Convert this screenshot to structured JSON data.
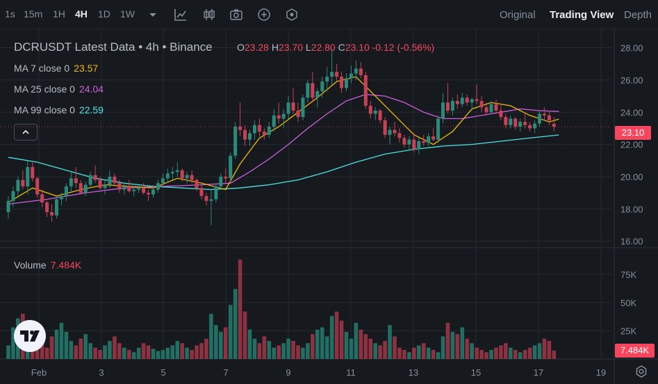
{
  "toolbar": {
    "intervals": [
      "1s",
      "15m",
      "1H",
      "4H",
      "1D",
      "1W"
    ],
    "active_interval": "4H",
    "views": [
      "Original",
      "Trading View",
      "Depth"
    ],
    "active_view": "Trading View",
    "icons": [
      "chevron-down-icon",
      "line-chart-icon",
      "candle-settings-icon",
      "camera-icon",
      "plus-circle-icon",
      "indicator-icon"
    ]
  },
  "legend": {
    "title": "DCRUSDT Latest Data • 4h • Binance",
    "o_label": "O",
    "o": "23.28",
    "h_label": "H",
    "h": "23.70",
    "l_label": "L",
    "l": "22.80",
    "c_label": "C",
    "c": "23.10",
    "change": "-0.12",
    "change_pct": "(-0.56%)"
  },
  "ma": [
    {
      "label": "MA 7 close 0",
      "value": "23.57",
      "color": "#f0b90b"
    },
    {
      "label": "MA 25 close 0",
      "value": "24.04",
      "color": "#d05fe0"
    },
    {
      "label": "MA 99 close 0",
      "value": "22.59",
      "color": "#4fe3e3"
    }
  ],
  "volume": {
    "label": "Volume",
    "value": "7.484K",
    "tag": "7.484K"
  },
  "price_tag": "23.10",
  "colors": {
    "up": "#2b8a7a",
    "down": "#c84255",
    "vol_up": "#236e63",
    "vol_down": "#8e3140",
    "grid": "#262a31"
  },
  "chart_data": [
    {
      "type": "candlestick",
      "title": "DCRUSDT Latest Data • 4h • Binance",
      "x_ticks": [
        "Feb",
        "3",
        "5",
        "7",
        "9",
        "11",
        "13",
        "15",
        "17",
        "19"
      ],
      "y_ticks": [
        "28.00",
        "26.00",
        "24.00",
        "22.00",
        "20.00",
        "18.00",
        "16.00"
      ],
      "ylim": [
        15.5,
        29
      ],
      "last_price": 23.1,
      "grid": true,
      "ohlc": [
        [
          17.8,
          18.8,
          17.4,
          18.5
        ],
        [
          18.5,
          19.4,
          18.1,
          19.1
        ],
        [
          19.1,
          20.0,
          18.8,
          19.8
        ],
        [
          19.8,
          20.4,
          19.2,
          19.4
        ],
        [
          19.4,
          21.0,
          18.9,
          20.6
        ],
        [
          20.6,
          20.9,
          19.7,
          19.9
        ],
        [
          19.9,
          20.0,
          18.7,
          18.9
        ],
        [
          18.9,
          19.2,
          18.1,
          18.4
        ],
        [
          18.4,
          18.5,
          17.5,
          17.8
        ],
        [
          17.8,
          18.3,
          17.2,
          17.6
        ],
        [
          17.6,
          18.8,
          17.4,
          18.6
        ],
        [
          18.6,
          19.0,
          18.2,
          18.8
        ],
        [
          18.8,
          19.6,
          18.5,
          19.4
        ],
        [
          19.4,
          20.3,
          19.1,
          19.9
        ],
        [
          19.9,
          20.6,
          19.3,
          19.6
        ],
        [
          19.6,
          19.8,
          18.9,
          19.0
        ],
        [
          19.0,
          19.7,
          18.8,
          19.5
        ],
        [
          19.5,
          20.3,
          19.3,
          20.1
        ],
        [
          20.1,
          20.7,
          19.6,
          19.8
        ],
        [
          19.8,
          20.0,
          19.2,
          19.3
        ],
        [
          19.3,
          19.8,
          18.9,
          19.5
        ],
        [
          19.5,
          20.4,
          19.3,
          20.0
        ],
        [
          20.0,
          20.2,
          19.4,
          19.6
        ],
        [
          19.6,
          19.8,
          19.0,
          19.2
        ],
        [
          19.2,
          19.6,
          18.9,
          19.4
        ],
        [
          19.4,
          19.8,
          19.0,
          19.1
        ],
        [
          19.1,
          19.4,
          18.8,
          19.2
        ],
        [
          19.2,
          19.5,
          19.0,
          19.3
        ],
        [
          19.3,
          19.6,
          18.9,
          19.0
        ],
        [
          19.0,
          19.2,
          18.5,
          18.9
        ],
        [
          18.9,
          19.5,
          18.7,
          19.2
        ],
        [
          19.2,
          19.8,
          19.0,
          19.6
        ],
        [
          19.6,
          20.2,
          19.3,
          19.9
        ],
        [
          19.9,
          20.5,
          19.6,
          20.2
        ],
        [
          20.2,
          20.6,
          19.8,
          20.3
        ],
        [
          20.3,
          20.9,
          20.0,
          20.4
        ],
        [
          20.4,
          20.5,
          19.7,
          19.9
        ],
        [
          19.9,
          20.3,
          19.6,
          20.1
        ],
        [
          20.1,
          20.4,
          19.6,
          19.8
        ],
        [
          19.8,
          19.9,
          19.1,
          19.3
        ],
        [
          19.3,
          19.5,
          18.6,
          18.8
        ],
        [
          18.8,
          19.0,
          18.2,
          18.5
        ],
        [
          18.5,
          19.2,
          17.0,
          18.6
        ],
        [
          18.6,
          19.6,
          18.4,
          19.4
        ],
        [
          19.4,
          20.2,
          19.2,
          20.0
        ],
        [
          20.0,
          20.5,
          19.6,
          19.9
        ],
        [
          19.9,
          21.5,
          19.7,
          21.3
        ],
        [
          21.3,
          23.4,
          21.1,
          23.1
        ],
        [
          23.1,
          24.6,
          22.5,
          22.9
        ],
        [
          22.9,
          23.2,
          21.9,
          22.3
        ],
        [
          22.3,
          22.9,
          21.9,
          22.7
        ],
        [
          22.7,
          23.5,
          22.3,
          23.2
        ],
        [
          23.2,
          23.6,
          22.5,
          22.8
        ],
        [
          22.8,
          23.0,
          22.3,
          22.6
        ],
        [
          22.6,
          23.4,
          22.4,
          23.1
        ],
        [
          23.1,
          24.2,
          22.8,
          23.8
        ],
        [
          23.8,
          24.6,
          23.3,
          23.6
        ],
        [
          23.6,
          24.2,
          23.0,
          23.9
        ],
        [
          23.9,
          25.0,
          23.6,
          24.6
        ],
        [
          24.6,
          25.5,
          23.9,
          24.1
        ],
        [
          24.1,
          24.6,
          23.4,
          23.7
        ],
        [
          23.7,
          25.1,
          23.5,
          24.9
        ],
        [
          24.9,
          26.0,
          24.6,
          25.8
        ],
        [
          25.8,
          26.5,
          24.6,
          24.9
        ],
        [
          24.9,
          25.5,
          24.3,
          25.3
        ],
        [
          25.3,
          26.2,
          24.9,
          25.9
        ],
        [
          25.9,
          26.8,
          25.3,
          26.2
        ],
        [
          26.2,
          27.9,
          25.7,
          26.5
        ],
        [
          26.5,
          27.0,
          25.9,
          26.2
        ],
        [
          26.2,
          26.5,
          25.2,
          25.5
        ],
        [
          25.5,
          26.4,
          25.3,
          26.1
        ],
        [
          26.1,
          26.9,
          25.8,
          26.4
        ],
        [
          26.4,
          27.2,
          26.0,
          26.7
        ],
        [
          26.7,
          27.1,
          26.1,
          26.3
        ],
        [
          26.3,
          26.5,
          24.2,
          24.4
        ],
        [
          24.4,
          24.7,
          23.6,
          23.9
        ],
        [
          23.9,
          24.3,
          23.5,
          24.1
        ],
        [
          24.1,
          24.2,
          23.3,
          23.5
        ],
        [
          23.5,
          23.7,
          22.4,
          22.6
        ],
        [
          22.6,
          23.1,
          22.0,
          22.9
        ],
        [
          22.9,
          23.4,
          22.5,
          22.7
        ],
        [
          22.7,
          23.0,
          22.1,
          22.4
        ],
        [
          22.4,
          22.6,
          21.8,
          22.0
        ],
        [
          22.0,
          22.5,
          21.7,
          22.3
        ],
        [
          22.3,
          22.7,
          21.5,
          21.7
        ],
        [
          21.7,
          22.4,
          21.4,
          22.2
        ],
        [
          22.2,
          22.6,
          21.9,
          22.1
        ],
        [
          22.1,
          22.7,
          21.9,
          22.5
        ],
        [
          22.5,
          23.0,
          22.2,
          22.3
        ],
        [
          22.3,
          23.8,
          22.1,
          23.6
        ],
        [
          23.6,
          25.2,
          23.3,
          24.6
        ],
        [
          24.6,
          25.8,
          23.9,
          24.1
        ],
        [
          24.1,
          24.9,
          23.8,
          24.7
        ],
        [
          24.7,
          25.1,
          24.2,
          24.5
        ],
        [
          24.5,
          25.2,
          24.3,
          24.9
        ],
        [
          24.9,
          25.1,
          24.4,
          24.6
        ],
        [
          24.6,
          24.9,
          24.1,
          24.8
        ],
        [
          24.8,
          25.7,
          24.5,
          24.7
        ],
        [
          24.7,
          25.0,
          24.0,
          24.3
        ],
        [
          24.3,
          24.6,
          23.8,
          24.0
        ],
        [
          24.0,
          24.7,
          23.9,
          24.5
        ],
        [
          24.5,
          24.8,
          23.9,
          24.1
        ],
        [
          24.1,
          24.5,
          23.5,
          23.7
        ],
        [
          23.7,
          23.9,
          23.0,
          23.2
        ],
        [
          23.2,
          23.8,
          23.0,
          23.6
        ],
        [
          23.6,
          23.7,
          22.9,
          23.1
        ],
        [
          23.1,
          23.6,
          22.8,
          23.4
        ],
        [
          23.4,
          23.9,
          23.0,
          23.2
        ],
        [
          23.2,
          23.4,
          22.8,
          23.0
        ],
        [
          23.0,
          23.5,
          22.7,
          23.3
        ],
        [
          23.3,
          24.1,
          23.1,
          23.9
        ],
        [
          23.9,
          24.3,
          23.5,
          23.8
        ],
        [
          23.8,
          24.0,
          23.2,
          23.5
        ],
        [
          23.28,
          23.7,
          22.8,
          23.1
        ]
      ],
      "ma7": [
        [
          0,
          18.4
        ],
        [
          5,
          19.3
        ],
        [
          10,
          18.8
        ],
        [
          15,
          19.2
        ],
        [
          20,
          19.5
        ],
        [
          25,
          19.4
        ],
        [
          30,
          19.3
        ],
        [
          35,
          19.9
        ],
        [
          40,
          19.6
        ],
        [
          45,
          19.2
        ],
        [
          48,
          20.8
        ],
        [
          52,
          22.4
        ],
        [
          56,
          23.1
        ],
        [
          60,
          24.0
        ],
        [
          64,
          24.9
        ],
        [
          68,
          25.9
        ],
        [
          72,
          26.2
        ],
        [
          76,
          25.0
        ],
        [
          80,
          23.8
        ],
        [
          84,
          22.6
        ],
        [
          88,
          22.0
        ],
        [
          92,
          22.8
        ],
        [
          96,
          24.2
        ],
        [
          100,
          24.6
        ],
        [
          104,
          24.4
        ],
        [
          108,
          23.8
        ],
        [
          112,
          23.4
        ],
        [
          114,
          23.57
        ]
      ],
      "ma25": [
        [
          0,
          18.3
        ],
        [
          8,
          18.6
        ],
        [
          16,
          19.0
        ],
        [
          24,
          19.3
        ],
        [
          32,
          19.4
        ],
        [
          40,
          19.5
        ],
        [
          46,
          19.6
        ],
        [
          50,
          20.3
        ],
        [
          54,
          21.1
        ],
        [
          58,
          22.0
        ],
        [
          62,
          23.0
        ],
        [
          66,
          23.9
        ],
        [
          70,
          24.7
        ],
        [
          74,
          25.1
        ],
        [
          78,
          25.0
        ],
        [
          82,
          24.6
        ],
        [
          86,
          24.0
        ],
        [
          90,
          23.6
        ],
        [
          94,
          23.6
        ],
        [
          98,
          23.8
        ],
        [
          102,
          24.0
        ],
        [
          106,
          24.2
        ],
        [
          110,
          24.1
        ],
        [
          114,
          24.04
        ]
      ],
      "ma99": [
        [
          0,
          21.2
        ],
        [
          6,
          20.9
        ],
        [
          12,
          20.4
        ],
        [
          18,
          19.9
        ],
        [
          24,
          19.6
        ],
        [
          30,
          19.4
        ],
        [
          36,
          19.3
        ],
        [
          42,
          19.2
        ],
        [
          48,
          19.3
        ],
        [
          54,
          19.5
        ],
        [
          60,
          19.8
        ],
        [
          66,
          20.3
        ],
        [
          72,
          20.9
        ],
        [
          78,
          21.4
        ],
        [
          84,
          21.7
        ],
        [
          90,
          21.9
        ],
        [
          96,
          22.0
        ],
        [
          102,
          22.2
        ],
        [
          108,
          22.4
        ],
        [
          114,
          22.59
        ]
      ]
    },
    {
      "type": "bar",
      "title": "Volume",
      "y_ticks": [
        "75K",
        "50K",
        "25K"
      ],
      "ylim": [
        0,
        90000
      ],
      "values": [
        12,
        28,
        36,
        40,
        18,
        30,
        22,
        14,
        10,
        20,
        26,
        32,
        24,
        16,
        12,
        18,
        22,
        14,
        10,
        8,
        12,
        16,
        20,
        14,
        10,
        8,
        6,
        10,
        14,
        12,
        9,
        7,
        8,
        10,
        12,
        16,
        14,
        10,
        8,
        12,
        14,
        18,
        40,
        30,
        24,
        28,
        48,
        62,
        88,
        42,
        26,
        18,
        14,
        20,
        16,
        10,
        12,
        14,
        18,
        16,
        12,
        10,
        14,
        22,
        26,
        28,
        20,
        38,
        42,
        34,
        24,
        18,
        32,
        26,
        22,
        18,
        14,
        12,
        16,
        30,
        20,
        10,
        8,
        6,
        10,
        12,
        14,
        10,
        8,
        6,
        20,
        32,
        24,
        22,
        28,
        18,
        14,
        10,
        8,
        6,
        8,
        10,
        12,
        14,
        10,
        8,
        6,
        8,
        10,
        12,
        14,
        18,
        16,
        7.484
      ]
    }
  ]
}
